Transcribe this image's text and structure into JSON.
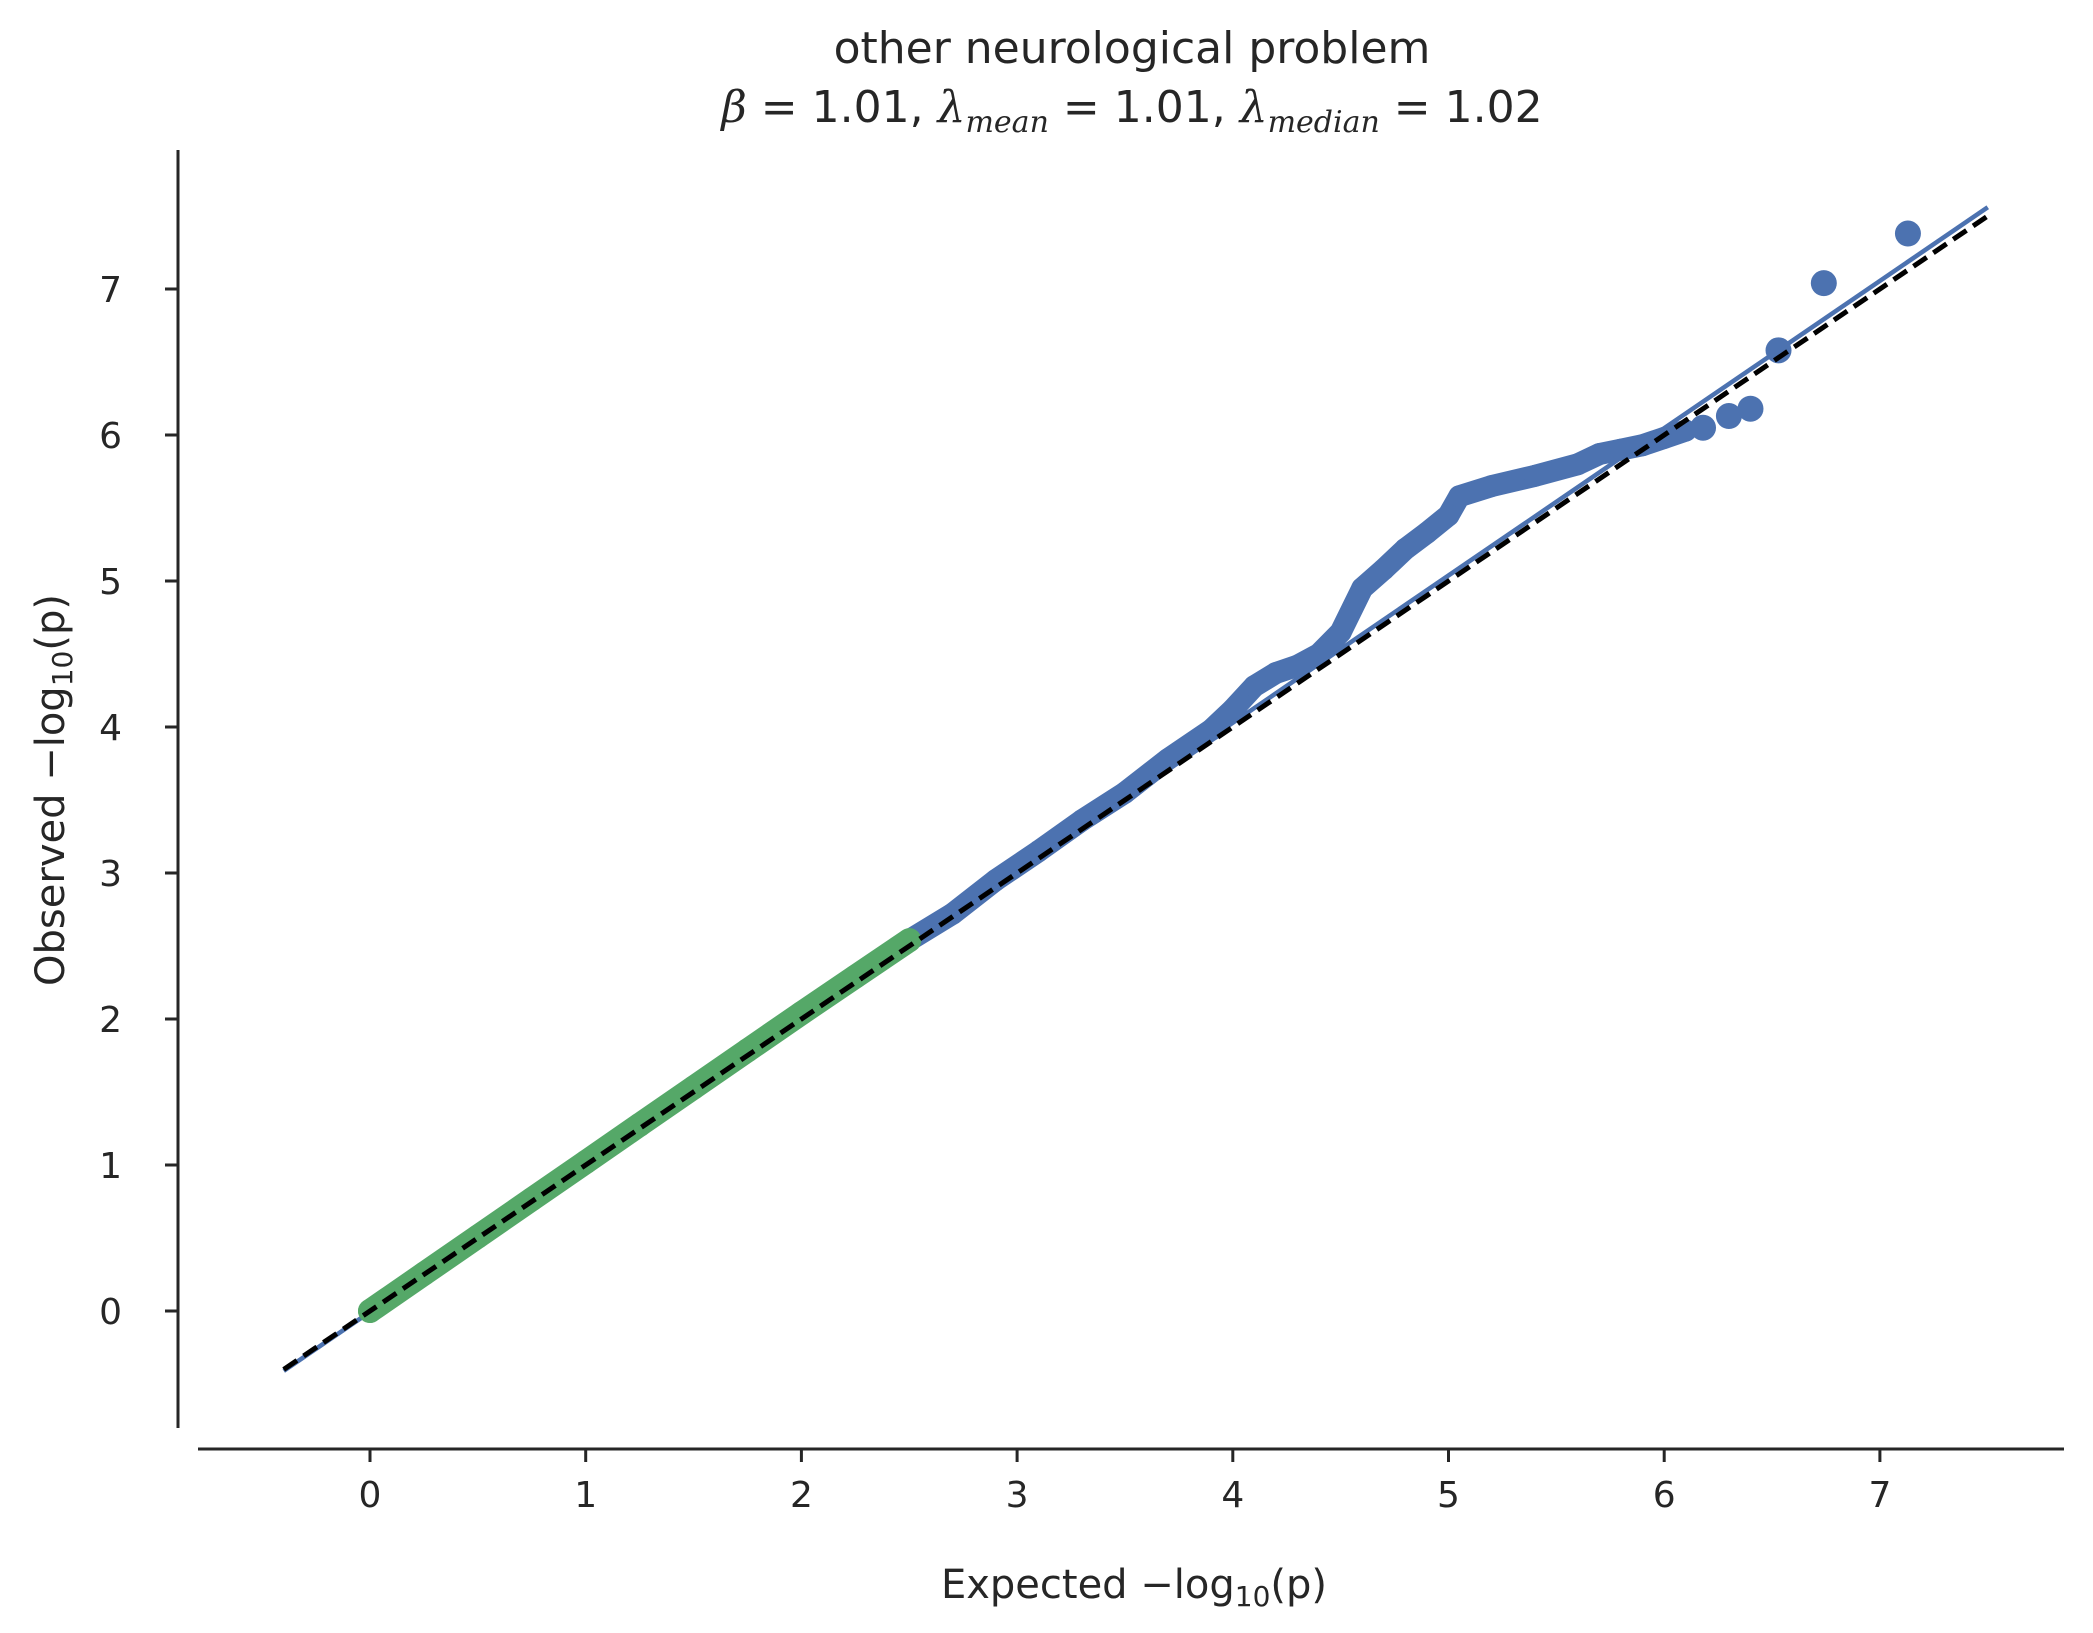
{
  "chart_data": {
    "type": "scatter",
    "title": "other neurological problem",
    "subtitle": {
      "beta_symbol": "β",
      "beta": "1.01",
      "lambda_symbol": "λ",
      "mean_sub": "mean",
      "lambda_mean": "1.01",
      "median_sub": "median",
      "lambda_median": "1.02"
    },
    "xlabel": {
      "prefix": "Expected −log",
      "sub": "10",
      "suffix": "(p)"
    },
    "ylabel": {
      "prefix": "Observed −log",
      "sub": "10",
      "suffix": "(p)"
    },
    "xlim": [
      -0.8,
      7.9
    ],
    "ylim": [
      -0.9,
      7.9
    ],
    "x_ticks": [
      "0",
      "1",
      "2",
      "3",
      "4",
      "5",
      "6",
      "7"
    ],
    "y_ticks": [
      "0",
      "1",
      "2",
      "3",
      "4",
      "5",
      "6",
      "7"
    ],
    "grid": false,
    "colors": {
      "significant_points": "#4c72b0",
      "null_points": "#55a868",
      "fit_line": "#4c72b0",
      "reference_line": "#000000",
      "text": "#262626"
    },
    "null_series": {
      "name": "",
      "x": [
        0.0,
        0.25,
        0.5,
        0.75,
        1.0,
        1.25,
        1.5,
        1.75,
        2.0,
        2.25,
        2.5
      ],
      "y": [
        0.0,
        0.255,
        0.51,
        0.765,
        1.02,
        1.275,
        1.53,
        1.785,
        2.04,
        2.29,
        2.54
      ]
    },
    "observed_series": {
      "name": "",
      "x": [
        2.5,
        2.7,
        2.9,
        3.1,
        3.3,
        3.5,
        3.7,
        3.9,
        4.0,
        4.1,
        4.2,
        4.3,
        4.4,
        4.5,
        4.6,
        4.7,
        4.8,
        4.9,
        5.0,
        5.05,
        5.2,
        5.4,
        5.6,
        5.7,
        5.8,
        5.9,
        6.0,
        6.1
      ],
      "y": [
        2.54,
        2.72,
        2.95,
        3.15,
        3.36,
        3.55,
        3.78,
        3.98,
        4.12,
        4.28,
        4.37,
        4.42,
        4.5,
        4.65,
        4.95,
        5.08,
        5.22,
        5.33,
        5.45,
        5.58,
        5.65,
        5.72,
        5.8,
        5.87,
        5.9,
        5.93,
        5.98,
        6.03
      ]
    },
    "tail_points": {
      "x": [
        6.18,
        6.3,
        6.4,
        6.53,
        6.74,
        7.13
      ],
      "y": [
        6.05,
        6.13,
        6.18,
        6.58,
        7.04,
        7.38
      ]
    },
    "fit_line": {
      "x": [
        -0.4,
        7.5
      ],
      "y": [
        -0.41,
        7.56
      ]
    },
    "reference_line": {
      "x": [
        -0.4,
        7.5
      ],
      "y": [
        -0.4,
        7.5
      ]
    }
  }
}
